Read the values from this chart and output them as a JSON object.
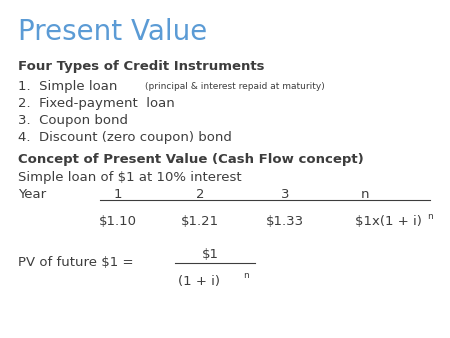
{
  "title": "Present Value",
  "title_color": "#5b9bd5",
  "bg_color": "#ffffff",
  "text_color": "#3d3d3d",
  "bold_heading1": "Four Types of Credit Instruments",
  "bold_heading2": "Concept of Present Value (Cash Flow concept)",
  "subtext": "Simple loan of $1 at 10% interest",
  "year_label": "Year",
  "year_values": [
    "1",
    "2",
    "3",
    "n"
  ],
  "cashflows": [
    "$1.10",
    "$1.21",
    "$1.33"
  ],
  "cashflow_last": "$1x(1 + i)",
  "pv_label": "PV of future $1 =",
  "pv_numerator": "$1",
  "pv_denominator": "(1 + i)"
}
